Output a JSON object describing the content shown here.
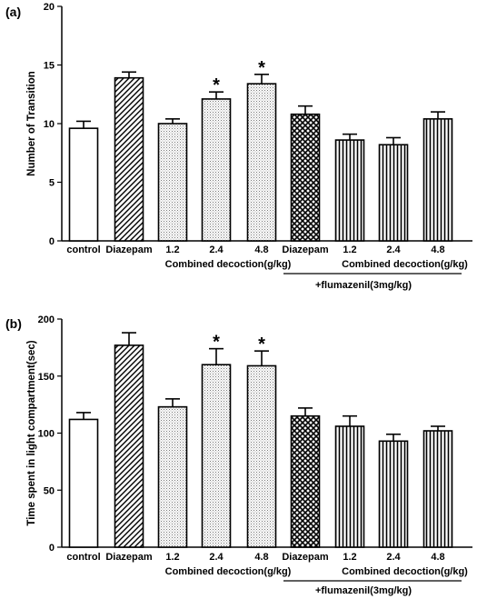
{
  "chart_data": [
    {
      "type": "bar",
      "panel_label": "(a)",
      "ylabel": "Number of Transition",
      "ylim": [
        0,
        20
      ],
      "yticks": [
        0,
        5,
        10,
        15,
        20
      ],
      "categories": [
        "control",
        "Diazepam",
        "1.2",
        "2.4",
        "4.8",
        "Diazepam",
        "1.2",
        "2.4",
        "4.8"
      ],
      "values": [
        9.6,
        13.9,
        10.0,
        12.1,
        13.4,
        10.8,
        8.6,
        8.2,
        10.4
      ],
      "errors": [
        0.6,
        0.5,
        0.4,
        0.6,
        0.8,
        0.7,
        0.5,
        0.6,
        0.6
      ],
      "patterns": [
        "none",
        "diagonal",
        "dots",
        "dots",
        "dots",
        "crosshatch",
        "vertical",
        "vertical",
        "vertical"
      ],
      "significant": [
        false,
        false,
        false,
        true,
        true,
        false,
        false,
        false,
        false
      ],
      "significance_marker": "*",
      "group_labels": [
        {
          "text": "Combined decoction(g/kg)",
          "from": 2,
          "to": 4
        },
        {
          "text": "Combined decoction(g/kg)",
          "from": 6,
          "to": 8
        }
      ],
      "bracket_label": {
        "text": "+flumazenil(3mg/kg)",
        "from": 5,
        "to": 8
      }
    },
    {
      "type": "bar",
      "panel_label": "(b)",
      "ylabel": "Time spent in light compartment(sec)",
      "ylim": [
        0,
        200
      ],
      "yticks": [
        0,
        50,
        100,
        150,
        200
      ],
      "categories": [
        "control",
        "Diazepam",
        "1.2",
        "2.4",
        "4.8",
        "Diazepam",
        "1.2",
        "2.4",
        "4.8"
      ],
      "values": [
        112,
        177,
        123,
        160,
        159,
        115,
        106,
        93,
        102
      ],
      "errors": [
        6,
        11,
        7,
        14,
        13,
        7,
        9,
        6,
        4
      ],
      "patterns": [
        "none",
        "diagonal",
        "dots",
        "dots",
        "dots",
        "crosshatch",
        "vertical",
        "vertical",
        "vertical"
      ],
      "significant": [
        false,
        false,
        false,
        true,
        true,
        false,
        false,
        false,
        false
      ],
      "significance_marker": "*",
      "group_labels": [
        {
          "text": "Combined decoction(g/kg)",
          "from": 2,
          "to": 4
        },
        {
          "text": "Combined decoction(g/kg)",
          "from": 6,
          "to": 8
        }
      ],
      "bracket_label": {
        "text": "+flumazenil(3mg/kg)",
        "from": 5,
        "to": 8
      }
    }
  ]
}
